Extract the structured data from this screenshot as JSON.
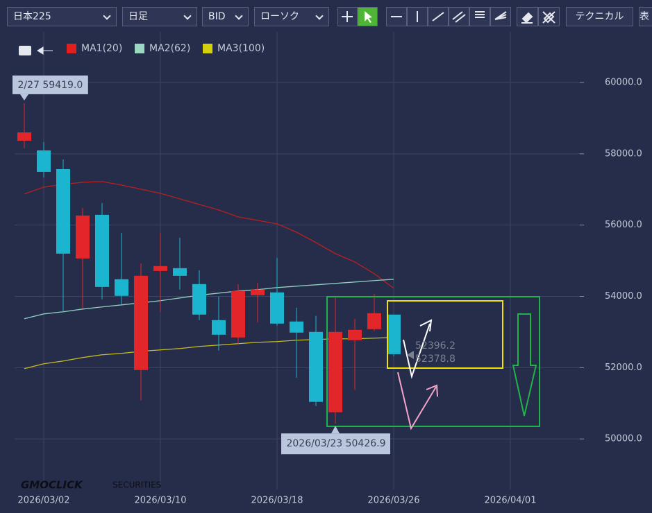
{
  "toolbar": {
    "symbol": "日本225",
    "period": "日足",
    "price_type": "BID",
    "chart_style": "ローソク",
    "technical": "テクニカル",
    "cut_button": "表"
  },
  "watermark": {
    "brand": "GMOCLICK",
    "suffix": "SECURITIES"
  },
  "chart_data": {
    "type": "candlestick",
    "categories": [
      null,
      "2026/03/02",
      null,
      null,
      null,
      null,
      null,
      "2026/03/10",
      null,
      null,
      null,
      null,
      null,
      "2026/03/18",
      null,
      null,
      null,
      null,
      null,
      "2026/03/26",
      null,
      null,
      null,
      null,
      null,
      "2026/04/01"
    ],
    "up_color": "#e3262a",
    "down_color": "#1cb5cf",
    "open": [
      58367,
      58095,
      57570,
      55063,
      56288,
      54480,
      51934,
      54713,
      54791,
      54344,
      53333,
      52847,
      54033,
      54111,
      53295,
      53003,
      50749,
      52769,
      53081,
      53489,
      null,
      null,
      null,
      null,
      null,
      null
    ],
    "high": [
      59419,
      58328,
      57843,
      56482,
      56618,
      55782,
      54927,
      55782,
      55646,
      54733,
      53994,
      54344,
      54383,
      55083,
      53683,
      53450,
      53994,
      53372,
      54072,
      53489,
      null,
      null,
      null,
      null,
      null,
      null
    ],
    "low": [
      58154,
      57337,
      53567,
      53664,
      53917,
      53761,
      51079,
      53567,
      54189,
      53333,
      52478,
      52653,
      53275,
      53178,
      51720,
      50923,
      50426.9,
      51371,
      53022,
      52323,
      null,
      null,
      null,
      null,
      null,
      null
    ],
    "close": [
      58600,
      57493,
      55199,
      56268,
      54266,
      54014,
      54577,
      54850,
      54577,
      53489,
      52925,
      54150,
      54189,
      53236,
      52984,
      51040,
      53003,
      53061,
      53528,
      52378.8,
      null,
      null,
      null,
      null,
      null,
      null
    ],
    "series": [
      {
        "name": "MA1(20)",
        "color": "#b8201f",
        "legend_color": "#e0201e",
        "values": [
          56871,
          57065,
          57143,
          57201,
          57221,
          57124,
          57007,
          56890,
          56735,
          56580,
          56424,
          56230,
          56132,
          56035,
          55802,
          55510,
          55199,
          54966,
          54636,
          54228,
          null,
          null,
          null,
          null,
          null,
          null
        ]
      },
      {
        "name": "MA2(62)",
        "color": "#8fcfc0",
        "legend_color": "#9ad8c4",
        "values": [
          53372,
          53508,
          53567,
          53644,
          53703,
          53761,
          53819,
          53878,
          53955,
          54033,
          54091,
          54150,
          54189,
          54247,
          54286,
          54325,
          54364,
          54403,
          54442,
          54480,
          null,
          null,
          null,
          null,
          null,
          null
        ]
      },
      {
        "name": "MA3(100)",
        "color": "#c9bf1c",
        "legend_color": "#d6cf0c",
        "values": [
          51973,
          52109,
          52187,
          52284,
          52362,
          52401,
          52459,
          52498,
          52537,
          52595,
          52634,
          52673,
          52712,
          52731,
          52770,
          52790,
          52809,
          52809,
          52828,
          52847,
          null,
          null,
          null,
          null,
          null,
          null
        ]
      }
    ],
    "ylim": [
      48700,
      61440
    ],
    "yticks": [
      {
        "value": 50000,
        "label": "50000.0"
      },
      {
        "value": 52000,
        "label": "52000.0"
      },
      {
        "value": 54000,
        "label": "54000.0"
      },
      {
        "value": 56000,
        "label": "56000.0"
      },
      {
        "value": 58000,
        "label": "58000.0"
      },
      {
        "value": 60000,
        "label": "60000.0"
      }
    ],
    "grid": true,
    "annotations": [
      {
        "text": "2/27 59419.0",
        "index": 0,
        "value": 59419,
        "side": "above"
      },
      {
        "text": "2026/03/23 50426.9",
        "index": 16,
        "value": 50426.9,
        "side": "below"
      }
    ],
    "price_labels": [
      {
        "text": "52396.2",
        "value": 52396.2
      },
      {
        "text": "52378.8",
        "value": 52378.8
      }
    ]
  }
}
